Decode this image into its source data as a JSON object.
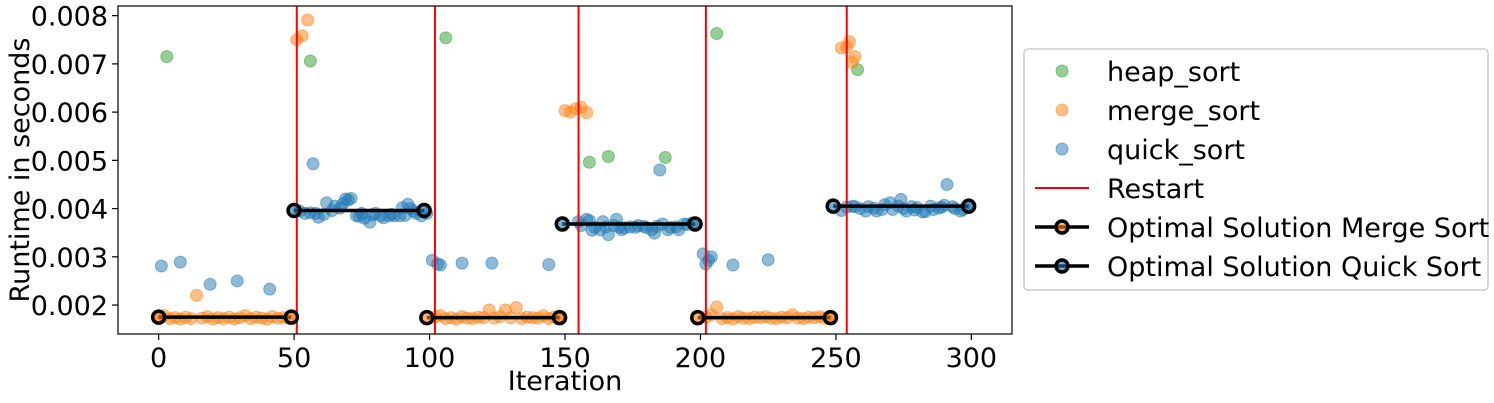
{
  "chart_data": {
    "type": "scatter",
    "title": "",
    "xlabel": "Iteration",
    "ylabel": "Runtime in seconds",
    "xlim": [
      -15,
      315
    ],
    "ylim": [
      0.0014,
      0.0082
    ],
    "x_ticks": [
      0,
      50,
      100,
      150,
      200,
      250,
      300
    ],
    "x_tick_labels": [
      "0",
      "50",
      "100",
      "150",
      "200",
      "250",
      "300"
    ],
    "y_ticks": [
      0.002,
      0.003,
      0.004,
      0.005,
      0.006,
      0.007,
      0.008
    ],
    "y_tick_labels": [
      "0.002",
      "0.003",
      "0.004",
      "0.005",
      "0.006",
      "0.007",
      "0.008"
    ],
    "grid": false,
    "legend_placement": "outside-right",
    "restarts": [
      51,
      102,
      155,
      202,
      254
    ],
    "series": [
      {
        "name": "heap_sort",
        "color": "#2ca02c",
        "kind": "points",
        "points": [
          [
            3,
            0.00715
          ],
          [
            56,
            0.00706
          ],
          [
            106,
            0.00754
          ],
          [
            159,
            0.00496
          ],
          [
            166,
            0.00508
          ],
          [
            187,
            0.00506
          ],
          [
            206,
            0.00763
          ],
          [
            258,
            0.00688
          ]
        ]
      },
      {
        "name": "merge_sort",
        "color": "#ff7f0e",
        "kind": "points",
        "points": [
          [
            0,
            0.00175
          ],
          [
            2,
            0.00178
          ],
          [
            4,
            0.00172
          ],
          [
            6,
            0.00174
          ],
          [
            8,
            0.00171
          ],
          [
            10,
            0.00175
          ],
          [
            12,
            0.00172
          ],
          [
            14,
            0.0022
          ],
          [
            16,
            0.00173
          ],
          [
            18,
            0.00176
          ],
          [
            20,
            0.00171
          ],
          [
            22,
            0.00174
          ],
          [
            24,
            0.00172
          ],
          [
            26,
            0.00175
          ],
          [
            28,
            0.00171
          ],
          [
            30,
            0.00174
          ],
          [
            32,
            0.00178
          ],
          [
            34,
            0.00172
          ],
          [
            36,
            0.00175
          ],
          [
            38,
            0.00173
          ],
          [
            40,
            0.00171
          ],
          [
            42,
            0.00176
          ],
          [
            44,
            0.00173
          ],
          [
            46,
            0.00174
          ],
          [
            48,
            0.00172
          ],
          [
            51,
            0.0075
          ],
          [
            53,
            0.00758
          ],
          [
            55,
            0.00791
          ],
          [
            102,
            0.00175
          ],
          [
            104,
            0.00178
          ],
          [
            106,
            0.00172
          ],
          [
            108,
            0.00174
          ],
          [
            110,
            0.00171
          ],
          [
            112,
            0.00176
          ],
          [
            114,
            0.00173
          ],
          [
            116,
            0.00172
          ],
          [
            118,
            0.00175
          ],
          [
            120,
            0.00174
          ],
          [
            122,
            0.0019
          ],
          [
            124,
            0.00173
          ],
          [
            126,
            0.00176
          ],
          [
            128,
            0.0019
          ],
          [
            130,
            0.00174
          ],
          [
            132,
            0.00195
          ],
          [
            134,
            0.00172
          ],
          [
            136,
            0.00175
          ],
          [
            138,
            0.00174
          ],
          [
            140,
            0.00173
          ],
          [
            142,
            0.00178
          ],
          [
            144,
            0.00172
          ],
          [
            146,
            0.00175
          ],
          [
            148,
            0.00173
          ],
          [
            150,
            0.00603
          ],
          [
            152,
            0.006
          ],
          [
            154,
            0.00607
          ],
          [
            156,
            0.0061
          ],
          [
            158,
            0.00599
          ],
          [
            202,
            0.00175
          ],
          [
            204,
            0.0018
          ],
          [
            206,
            0.00196
          ],
          [
            208,
            0.00172
          ],
          [
            210,
            0.00174
          ],
          [
            212,
            0.00171
          ],
          [
            214,
            0.00176
          ],
          [
            216,
            0.00173
          ],
          [
            218,
            0.00172
          ],
          [
            220,
            0.00175
          ],
          [
            222,
            0.00174
          ],
          [
            224,
            0.00176
          ],
          [
            226,
            0.00173
          ],
          [
            228,
            0.00172
          ],
          [
            230,
            0.00175
          ],
          [
            232,
            0.00174
          ],
          [
            234,
            0.0018
          ],
          [
            236,
            0.00173
          ],
          [
            238,
            0.00172
          ],
          [
            240,
            0.00175
          ],
          [
            242,
            0.00174
          ],
          [
            244,
            0.00176
          ],
          [
            246,
            0.00173
          ],
          [
            248,
            0.00172
          ],
          [
            252,
            0.00733
          ],
          [
            254,
            0.00735
          ],
          [
            255,
            0.00746
          ],
          [
            256,
            0.00703
          ],
          [
            257,
            0.00715
          ]
        ]
      },
      {
        "name": "quick_sort",
        "color": "#1f77b4",
        "kind": "points",
        "points": [
          [
            1,
            0.00281
          ],
          [
            8,
            0.00289
          ],
          [
            19,
            0.00243
          ],
          [
            29,
            0.0025
          ],
          [
            41,
            0.00233
          ],
          [
            52,
            0.00395
          ],
          [
            54,
            0.0039
          ],
          [
            56,
            0.00391
          ],
          [
            57,
            0.00493
          ],
          [
            58,
            0.0039
          ],
          [
            59,
            0.00382
          ],
          [
            61,
            0.00388
          ],
          [
            62,
            0.00412
          ],
          [
            64,
            0.00396
          ],
          [
            65,
            0.00405
          ],
          [
            67,
            0.00401
          ],
          [
            68,
            0.0041
          ],
          [
            69,
            0.0042
          ],
          [
            70,
            0.00418
          ],
          [
            71,
            0.00421
          ],
          [
            73,
            0.00385
          ],
          [
            74,
            0.00384
          ],
          [
            75,
            0.0039
          ],
          [
            76,
            0.0038
          ],
          [
            78,
            0.00372
          ],
          [
            79,
            0.00387
          ],
          [
            80,
            0.0039
          ],
          [
            82,
            0.00385
          ],
          [
            83,
            0.00381
          ],
          [
            85,
            0.00385
          ],
          [
            86,
            0.00388
          ],
          [
            87,
            0.00385
          ],
          [
            89,
            0.00385
          ],
          [
            90,
            0.00402
          ],
          [
            91,
            0.00386
          ],
          [
            92,
            0.00409
          ],
          [
            93,
            0.004
          ],
          [
            94,
            0.00395
          ],
          [
            95,
            0.0039
          ],
          [
            97,
            0.00385
          ],
          [
            99,
            0.0039
          ],
          [
            101,
            0.00293
          ],
          [
            103,
            0.00285
          ],
          [
            104,
            0.00283
          ],
          [
            112,
            0.00287
          ],
          [
            123,
            0.00287
          ],
          [
            144,
            0.00284
          ],
          [
            155,
            0.00373
          ],
          [
            156,
            0.00365
          ],
          [
            158,
            0.00378
          ],
          [
            159,
            0.00375
          ],
          [
            160,
            0.00355
          ],
          [
            161,
            0.00361
          ],
          [
            163,
            0.00356
          ],
          [
            164,
            0.00373
          ],
          [
            165,
            0.00362
          ],
          [
            166,
            0.00346
          ],
          [
            168,
            0.00365
          ],
          [
            169,
            0.00378
          ],
          [
            170,
            0.00361
          ],
          [
            171,
            0.00356
          ],
          [
            172,
            0.0036
          ],
          [
            174,
            0.00362
          ],
          [
            176,
            0.00361
          ],
          [
            177,
            0.00365
          ],
          [
            179,
            0.00363
          ],
          [
            180,
            0.00361
          ],
          [
            182,
            0.00356
          ],
          [
            183,
            0.00349
          ],
          [
            184,
            0.00363
          ],
          [
            185,
            0.0048
          ],
          [
            186,
            0.00368
          ],
          [
            188,
            0.00356
          ],
          [
            189,
            0.00361
          ],
          [
            191,
            0.00362
          ],
          [
            192,
            0.00356
          ],
          [
            194,
            0.00368
          ],
          [
            195,
            0.00367
          ],
          [
            197,
            0.0037
          ],
          [
            201,
            0.00306
          ],
          [
            202,
            0.00285
          ],
          [
            203,
            0.00293
          ],
          [
            204,
            0.003
          ],
          [
            212,
            0.00283
          ],
          [
            225,
            0.00294
          ],
          [
            252,
            0.00396
          ],
          [
            254,
            0.00403
          ],
          [
            256,
            0.00405
          ],
          [
            257,
            0.00404
          ],
          [
            259,
            0.004
          ],
          [
            261,
            0.00395
          ],
          [
            262,
            0.00404
          ],
          [
            264,
            0.00401
          ],
          [
            265,
            0.00395
          ],
          [
            267,
            0.00398
          ],
          [
            268,
            0.00408
          ],
          [
            270,
            0.00412
          ],
          [
            271,
            0.00398
          ],
          [
            273,
            0.00405
          ],
          [
            274,
            0.00419
          ],
          [
            275,
            0.004
          ],
          [
            276,
            0.00395
          ],
          [
            278,
            0.00404
          ],
          [
            279,
            0.00397
          ],
          [
            280,
            0.00402
          ],
          [
            282,
            0.00393
          ],
          [
            283,
            0.00394
          ],
          [
            285,
            0.00405
          ],
          [
            286,
            0.00398
          ],
          [
            288,
            0.00401
          ],
          [
            289,
            0.00403
          ],
          [
            290,
            0.00407
          ],
          [
            291,
            0.0045
          ],
          [
            293,
            0.00404
          ],
          [
            294,
            0.004
          ],
          [
            296,
            0.00395
          ],
          [
            297,
            0.00398
          ],
          [
            299,
            0.00402
          ]
        ]
      },
      {
        "name": "Restart",
        "color": "#ff0000",
        "kind": "vlines"
      },
      {
        "name": "Optimal Solution Merge Sort",
        "color": "#000000",
        "marker_color": "#ff7f0e",
        "kind": "segments",
        "segments": [
          [
            [
              0,
              0.00175
            ],
            [
              49,
              0.00175
            ]
          ],
          [
            [
              99,
              0.00174
            ],
            [
              148,
              0.00174
            ]
          ],
          [
            [
              199,
              0.00174
            ],
            [
              248,
              0.00174
            ]
          ]
        ]
      },
      {
        "name": "Optimal Solution Quick Sort",
        "color": "#000000",
        "marker_color": "#1f77b4",
        "kind": "segments",
        "segments": [
          [
            [
              50,
              0.00396
            ],
            [
              98,
              0.00396
            ]
          ],
          [
            [
              149,
              0.00368
            ],
            [
              198,
              0.00368
            ]
          ],
          [
            [
              249,
              0.00405
            ],
            [
              299,
              0.00405
            ]
          ]
        ]
      }
    ]
  }
}
